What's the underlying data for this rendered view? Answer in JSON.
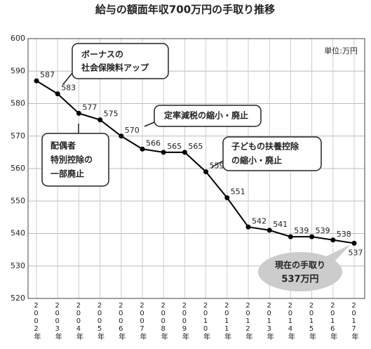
{
  "chart_data": {
    "type": "line",
    "title": "給与の額面年収700万円の手取り推移",
    "unit_label": "単位:万円",
    "categories": [
      "2002年",
      "2003年",
      "2004年",
      "2005年",
      "2006年",
      "2007年",
      "2008年",
      "2009年",
      "2010年",
      "2011年",
      "2012年",
      "2013年",
      "2014年",
      "2015年",
      "2016年",
      "2017年"
    ],
    "values": [
      587,
      583,
      577,
      575,
      570,
      566,
      565,
      565,
      559,
      551,
      542,
      541,
      539,
      539,
      538,
      537
    ],
    "color": "#000000",
    "ylim": [
      520,
      600
    ],
    "yticks": [
      520,
      530,
      540,
      550,
      560,
      570,
      580,
      590,
      600
    ],
    "grid": true,
    "annotations": [
      {
        "lines": [
          "ボーナスの",
          "社会保険料アップ"
        ]
      },
      {
        "lines": [
          "定率減税の縮小・廃止"
        ]
      },
      {
        "lines": [
          "配偶者",
          "特別控除の",
          "一部廃止"
        ]
      },
      {
        "lines": [
          "子どもの扶養控除",
          "の縮小・廃止"
        ]
      },
      {
        "lines": [
          "現在の手取り",
          "537万円"
        ]
      }
    ]
  }
}
